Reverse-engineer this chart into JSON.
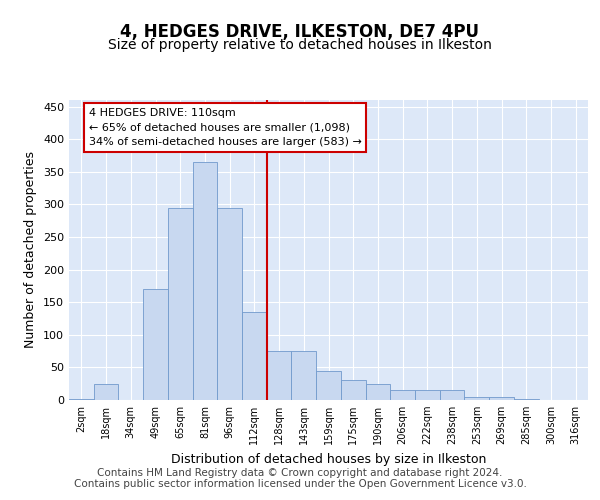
{
  "title1": "4, HEDGES DRIVE, ILKESTON, DE7 4PU",
  "title2": "Size of property relative to detached houses in Ilkeston",
  "xlabel": "Distribution of detached houses by size in Ilkeston",
  "ylabel": "Number of detached properties",
  "footer1": "Contains HM Land Registry data © Crown copyright and database right 2024.",
  "footer2": "Contains public sector information licensed under the Open Government Licence v3.0.",
  "categories": [
    "2sqm",
    "18sqm",
    "34sqm",
    "49sqm",
    "65sqm",
    "81sqm",
    "96sqm",
    "112sqm",
    "128sqm",
    "143sqm",
    "159sqm",
    "175sqm",
    "190sqm",
    "206sqm",
    "222sqm",
    "238sqm",
    "253sqm",
    "269sqm",
    "285sqm",
    "300sqm",
    "316sqm"
  ],
  "values": [
    1,
    25,
    0,
    170,
    295,
    365,
    295,
    135,
    75,
    75,
    45,
    30,
    25,
    15,
    15,
    15,
    5,
    5,
    2,
    0,
    0
  ],
  "bar_color": "#c8d8f0",
  "bar_edge_color": "#7099cc",
  "vline_x_index": 7,
  "vline_color": "#cc0000",
  "annotation_text": "4 HEDGES DRIVE: 110sqm\n← 65% of detached houses are smaller (1,098)\n34% of semi-detached houses are larger (583) →",
  "annotation_box_color": "white",
  "annotation_box_edge": "#cc0000",
  "ylim": [
    0,
    460
  ],
  "yticks": [
    0,
    50,
    100,
    150,
    200,
    250,
    300,
    350,
    400,
    450
  ],
  "bg_color": "#ffffff",
  "plot_bg_color": "#dde8f8",
  "title1_fontsize": 12,
  "title2_fontsize": 10,
  "xlabel_fontsize": 9,
  "ylabel_fontsize": 9,
  "footer_fontsize": 7.5
}
